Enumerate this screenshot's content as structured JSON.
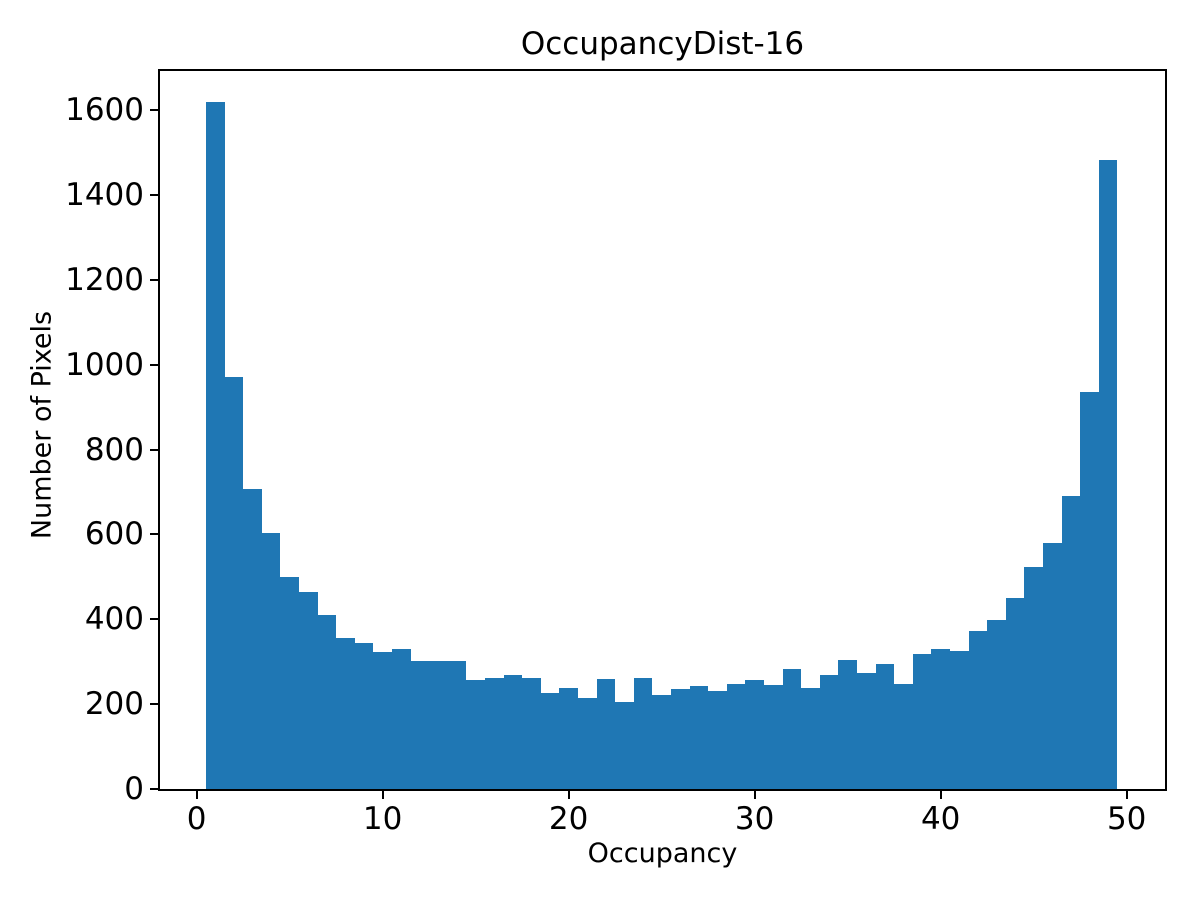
{
  "chart_data": {
    "type": "bar",
    "subtype": "histogram",
    "title": "OccupancyDist-16",
    "xlabel": "Occupancy",
    "ylabel": "Number of Pixels",
    "bar_color": "#1f77b4",
    "axis_color": "#000000",
    "background_color": "#ffffff",
    "grid": false,
    "legend": null,
    "bin_start": 0.5,
    "bin_width": 1,
    "bin_centers": [
      1,
      2,
      3,
      4,
      5,
      6,
      7,
      8,
      9,
      10,
      11,
      12,
      13,
      14,
      15,
      16,
      17,
      18,
      19,
      20,
      21,
      22,
      23,
      24,
      25,
      26,
      27,
      28,
      29,
      30,
      31,
      32,
      33,
      34,
      35,
      36,
      37,
      38,
      39,
      40,
      41,
      42,
      43,
      44,
      45,
      46,
      47,
      48,
      49
    ],
    "values": [
      1620,
      970,
      708,
      604,
      500,
      465,
      410,
      355,
      345,
      323,
      331,
      302,
      302,
      301,
      256,
      262,
      268,
      261,
      227,
      237,
      214,
      259,
      206,
      262,
      222,
      235,
      243,
      231,
      247,
      257,
      245,
      282,
      237,
      268,
      303,
      273,
      295,
      248,
      318,
      330,
      326,
      372,
      398,
      450,
      523,
      580,
      690,
      935,
      1482
    ],
    "xticks": [
      0,
      10,
      20,
      30,
      40,
      50
    ],
    "yticks": [
      0,
      200,
      400,
      600,
      800,
      1000,
      1200,
      1400,
      1600
    ],
    "xlim": [
      -1.97,
      52.06
    ],
    "ylim": [
      0,
      1692
    ]
  }
}
